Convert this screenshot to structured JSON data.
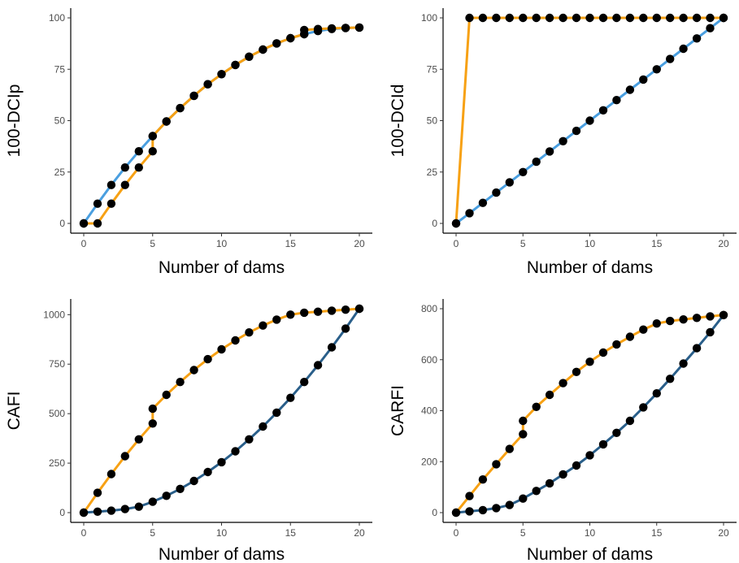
{
  "chart_data": [
    {
      "type": "line",
      "xlabel": "Number of dams",
      "ylabel": "100-DCIp",
      "xlim": [
        0,
        20
      ],
      "ylim": [
        0,
        100
      ],
      "xticks": [
        0,
        5,
        10,
        15,
        20
      ],
      "yticks": [
        0,
        25,
        50,
        75,
        100
      ],
      "grid": false,
      "series": [
        {
          "color": "#4a9fe0",
          "x": [
            0,
            1,
            2,
            3,
            4,
            5,
            6,
            7,
            8,
            9,
            10,
            11,
            12,
            13,
            14,
            15,
            16,
            17,
            18,
            19,
            20
          ],
          "y": [
            0,
            9.6,
            18.7,
            27.2,
            35.1,
            42.5,
            49.6,
            56.1,
            62.1,
            67.7,
            72.6,
            77.1,
            81.1,
            84.6,
            87.6,
            90.1,
            92.1,
            93.6,
            94.6,
            95.1,
            95.3
          ]
        },
        {
          "color": "#f7a114",
          "x": [
            0,
            1,
            2,
            3,
            4,
            5,
            5,
            6,
            7,
            8,
            9,
            10,
            11,
            12,
            13,
            14,
            15,
            16,
            16,
            17,
            18,
            19,
            20
          ],
          "y": [
            0,
            0,
            9.6,
            18.7,
            27.2,
            35.1,
            42.5,
            49.6,
            56.1,
            62.1,
            67.7,
            72.6,
            77.1,
            81.1,
            84.6,
            87.6,
            90.1,
            92.1,
            94.1,
            94.6,
            94.9,
            95.1,
            95.3
          ]
        }
      ]
    },
    {
      "type": "line",
      "xlabel": "Number of dams",
      "ylabel": "100-DCId",
      "xlim": [
        0,
        20
      ],
      "ylim": [
        0,
        100
      ],
      "xticks": [
        0,
        5,
        10,
        15,
        20
      ],
      "yticks": [
        0,
        25,
        50,
        75,
        100
      ],
      "grid": false,
      "series": [
        {
          "color": "#4a9fe0",
          "x": [
            0,
            1,
            2,
            3,
            4,
            5,
            6,
            7,
            8,
            9,
            10,
            11,
            12,
            13,
            14,
            15,
            16,
            17,
            18,
            19,
            20
          ],
          "y": [
            0,
            5,
            10,
            15,
            20,
            25,
            30,
            35,
            40,
            45,
            50,
            55,
            60,
            65,
            70,
            75,
            80,
            85,
            90,
            95,
            100
          ]
        },
        {
          "color": "#f7a114",
          "x": [
            0,
            1,
            2,
            3,
            4,
            5,
            6,
            7,
            8,
            9,
            10,
            11,
            12,
            13,
            14,
            15,
            16,
            17,
            18,
            19,
            20
          ],
          "y": [
            0,
            100,
            100,
            100,
            100,
            100,
            100,
            100,
            100,
            100,
            100,
            100,
            100,
            100,
            100,
            100,
            100,
            100,
            100,
            100,
            100
          ]
        }
      ]
    },
    {
      "type": "line",
      "xlabel": "Number of dams",
      "ylabel": "CAFI",
      "xlim": [
        0,
        20
      ],
      "ylim": [
        0,
        1030
      ],
      "xticks": [
        0,
        5,
        10,
        15,
        20
      ],
      "yticks": [
        0,
        250,
        500,
        750,
        1000
      ],
      "grid": false,
      "series": [
        {
          "color": "#2a5f8a",
          "x": [
            0,
            1,
            2,
            3,
            4,
            5,
            6,
            7,
            8,
            9,
            10,
            11,
            12,
            13,
            14,
            15,
            16,
            17,
            18,
            19,
            20
          ],
          "y": [
            0,
            5,
            10,
            18,
            30,
            55,
            85,
            120,
            160,
            205,
            255,
            310,
            370,
            435,
            505,
            580,
            660,
            745,
            835,
            930,
            1030
          ]
        },
        {
          "color": "#f7a114",
          "x": [
            0,
            1,
            2,
            3,
            4,
            5,
            5,
            6,
            7,
            8,
            9,
            10,
            11,
            12,
            13,
            14,
            15,
            16,
            17,
            18,
            19,
            20
          ],
          "y": [
            0,
            100,
            195,
            285,
            370,
            450,
            525,
            595,
            660,
            720,
            775,
            825,
            870,
            910,
            945,
            975,
            1000,
            1010,
            1015,
            1020,
            1025,
            1030
          ]
        }
      ]
    },
    {
      "type": "line",
      "xlabel": "Number of dams",
      "ylabel": "CARFI",
      "xlim": [
        0,
        20
      ],
      "ylim": [
        0,
        775
      ],
      "xticks": [
        0,
        5,
        10,
        15,
        20
      ],
      "yticks": [
        0,
        200,
        400,
        600,
        800
      ],
      "grid": false,
      "series": [
        {
          "color": "#2a5f8a",
          "x": [
            0,
            1,
            2,
            3,
            4,
            5,
            6,
            7,
            8,
            9,
            10,
            11,
            12,
            13,
            14,
            15,
            16,
            17,
            18,
            19,
            20
          ],
          "y": [
            0,
            5,
            10,
            18,
            30,
            55,
            85,
            115,
            150,
            185,
            225,
            268,
            313,
            360,
            413,
            468,
            525,
            585,
            645,
            708,
            775
          ]
        },
        {
          "color": "#f7a114",
          "x": [
            0,
            1,
            2,
            3,
            4,
            5,
            5,
            6,
            7,
            8,
            9,
            10,
            11,
            12,
            13,
            14,
            15,
            16,
            17,
            18,
            19,
            20
          ],
          "y": [
            0,
            65,
            130,
            190,
            250,
            308,
            360,
            415,
            462,
            508,
            552,
            592,
            628,
            660,
            690,
            718,
            742,
            752,
            758,
            764,
            770,
            775
          ]
        }
      ]
    }
  ]
}
